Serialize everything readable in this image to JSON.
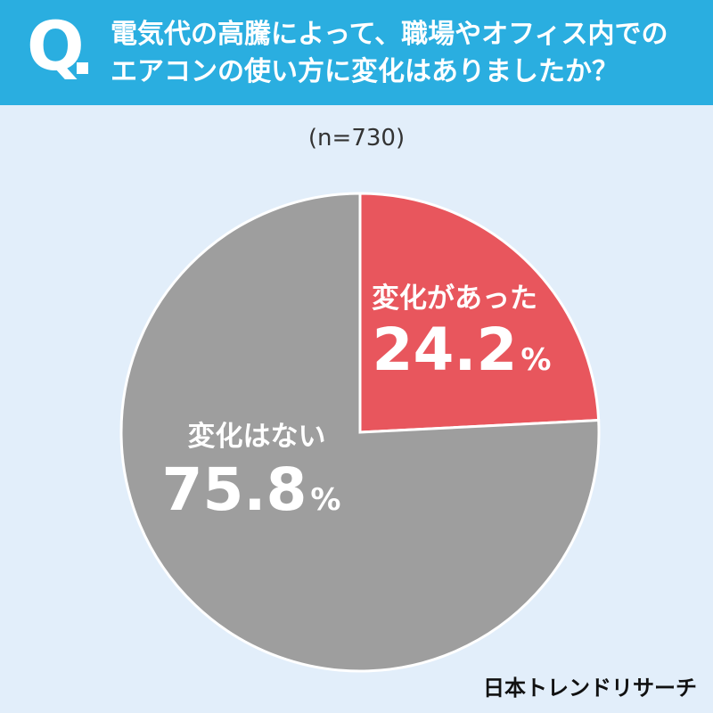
{
  "header": {
    "q_mark": "Q",
    "question_line1": "電気代の高騰によって、職場やオフィス内での",
    "question_line2": "エアコンの使い方に変化はありましたか？"
  },
  "sample_size": "(n=730)",
  "brand": "日本トレンドリサーチ",
  "colors": {
    "header": "#2aaee0",
    "background": "#e2eefa",
    "changed": "#e8565d",
    "unchanged": "#9e9e9e"
  },
  "chart_data": {
    "type": "pie",
    "start_angle": "12 o'clock",
    "direction": "clockwise",
    "slices": [
      {
        "label": "変化があった",
        "value": 24.2,
        "display": "24.2",
        "unit": "%",
        "color": "#e8565d"
      },
      {
        "label": "変化はない",
        "value": 75.8,
        "display": "75.8",
        "unit": "%",
        "color": "#9e9e9e"
      }
    ]
  }
}
